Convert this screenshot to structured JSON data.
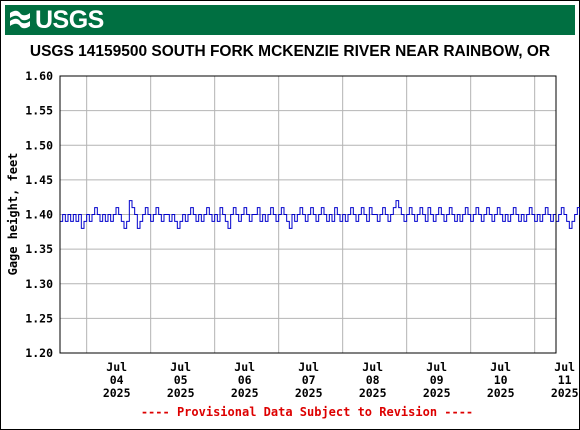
{
  "header": {
    "logo_text": "USGS",
    "title": "USGS 14159500 SOUTH FORK MCKENZIE RIVER NEAR RAINBOW, OR"
  },
  "footer": {
    "provisional_note": "---- Provisional Data Subject to Revision ----"
  },
  "colors": {
    "banner": "#006f41",
    "series": "#0000cc",
    "grid": "#b4b4b4",
    "note": "#dd0000"
  },
  "chart_data": {
    "type": "line",
    "title": "USGS 14159500 SOUTH FORK MCKENZIE RIVER NEAR RAINBOW, OR",
    "ylabel": "Gage height, feet",
    "xlabel": "",
    "ylim": [
      1.2,
      1.6
    ],
    "yticks": [
      "1.20",
      "1.25",
      "1.30",
      "1.35",
      "1.40",
      "1.45",
      "1.50",
      "1.55",
      "1.60"
    ],
    "xlim": [
      "2025-07-03 14:00",
      "2025-07-11 08:00"
    ],
    "xticks": [
      {
        "month": "Jul",
        "day": "04",
        "year": "2025",
        "at": "2025-07-04 00:00"
      },
      {
        "month": "Jul",
        "day": "05",
        "year": "2025",
        "at": "2025-07-05 00:00"
      },
      {
        "month": "Jul",
        "day": "06",
        "year": "2025",
        "at": "2025-07-06 00:00"
      },
      {
        "month": "Jul",
        "day": "07",
        "year": "2025",
        "at": "2025-07-07 00:00"
      },
      {
        "month": "Jul",
        "day": "08",
        "year": "2025",
        "at": "2025-07-08 00:00"
      },
      {
        "month": "Jul",
        "day": "09",
        "year": "2025",
        "at": "2025-07-09 00:00"
      },
      {
        "month": "Jul",
        "day": "10",
        "year": "2025",
        "at": "2025-07-10 00:00"
      },
      {
        "month": "Jul",
        "day": "11",
        "year": "2025",
        "at": "2025-07-11 00:00"
      }
    ],
    "grid": true,
    "series": [
      {
        "name": "",
        "start": "2025-07-03 14:00",
        "interval_minutes": 60,
        "values": [
          1.39,
          1.4,
          1.39,
          1.4,
          1.39,
          1.4,
          1.39,
          1.4,
          1.38,
          1.39,
          1.4,
          1.39,
          1.4,
          1.41,
          1.4,
          1.39,
          1.4,
          1.39,
          1.4,
          1.39,
          1.4,
          1.41,
          1.4,
          1.39,
          1.38,
          1.39,
          1.42,
          1.41,
          1.4,
          1.38,
          1.39,
          1.4,
          1.41,
          1.4,
          1.39,
          1.4,
          1.41,
          1.4,
          1.39,
          1.4,
          1.4,
          1.39,
          1.4,
          1.39,
          1.38,
          1.39,
          1.4,
          1.39,
          1.4,
          1.41,
          1.4,
          1.39,
          1.4,
          1.39,
          1.4,
          1.41,
          1.4,
          1.39,
          1.4,
          1.39,
          1.41,
          1.4,
          1.39,
          1.38,
          1.4,
          1.41,
          1.4,
          1.39,
          1.4,
          1.41,
          1.4,
          1.39,
          1.4,
          1.4,
          1.41,
          1.39,
          1.4,
          1.39,
          1.4,
          1.41,
          1.4,
          1.39,
          1.4,
          1.41,
          1.4,
          1.39,
          1.38,
          1.4,
          1.39,
          1.4,
          1.41,
          1.4,
          1.39,
          1.4,
          1.41,
          1.4,
          1.39,
          1.4,
          1.41,
          1.4,
          1.39,
          1.4,
          1.39,
          1.41,
          1.4,
          1.39,
          1.4,
          1.39,
          1.4,
          1.41,
          1.4,
          1.39,
          1.4,
          1.41,
          1.4,
          1.39,
          1.41,
          1.4,
          1.4,
          1.39,
          1.4,
          1.41,
          1.4,
          1.39,
          1.4,
          1.41,
          1.42,
          1.41,
          1.4,
          1.39,
          1.4,
          1.41,
          1.4,
          1.39,
          1.4,
          1.41,
          1.4,
          1.39,
          1.41,
          1.4,
          1.39,
          1.4,
          1.41,
          1.4,
          1.39,
          1.4,
          1.41,
          1.4,
          1.39,
          1.4,
          1.39,
          1.4,
          1.41,
          1.4,
          1.39,
          1.4,
          1.41,
          1.4,
          1.39,
          1.4,
          1.41,
          1.4,
          1.39,
          1.4,
          1.41,
          1.4,
          1.39,
          1.4,
          1.39,
          1.4,
          1.41,
          1.4,
          1.39,
          1.4,
          1.39,
          1.4,
          1.41,
          1.4,
          1.39,
          1.4,
          1.39,
          1.4,
          1.41,
          1.4,
          1.39,
          1.4,
          1.39,
          1.4,
          1.41,
          1.4,
          1.39,
          1.38,
          1.39,
          1.4,
          1.41,
          1.4,
          1.39,
          1.4,
          1.41,
          1.4,
          1.39,
          1.4,
          1.41,
          1.4,
          1.39,
          1.4,
          1.41,
          1.4,
          1.39,
          1.38,
          1.4,
          1.39,
          1.4,
          1.41,
          1.4,
          1.39,
          1.4,
          1.41,
          1.4,
          1.39,
          1.4,
          1.39,
          1.4,
          1.39,
          1.41,
          1.4,
          1.39,
          1.4,
          1.41,
          1.4,
          1.39,
          1.4,
          1.41,
          1.4,
          1.39,
          1.4,
          1.39,
          1.4,
          1.41,
          1.4,
          1.39,
          1.4,
          1.41,
          1.4,
          1.39,
          1.4,
          1.41,
          1.4,
          1.39,
          1.4,
          1.39,
          1.4,
          1.41,
          1.4,
          1.39,
          1.4,
          1.39,
          1.4,
          1.39,
          1.4,
          1.41,
          1.4,
          1.39,
          1.4,
          1.39,
          1.4,
          1.41,
          1.4,
          1.39,
          1.4,
          1.39,
          1.4,
          1.41,
          1.4,
          1.39,
          1.4,
          1.41,
          1.4,
          1.39,
          1.4,
          1.41,
          1.4,
          1.39,
          1.4,
          1.41,
          1.4,
          1.39,
          1.4,
          1.41,
          1.4,
          1.39,
          1.4,
          1.39,
          1.4,
          1.39,
          1.4,
          1.4,
          1.39,
          1.4,
          1.39,
          1.41,
          1.4,
          1.39,
          1.4
        ]
      }
    ]
  }
}
